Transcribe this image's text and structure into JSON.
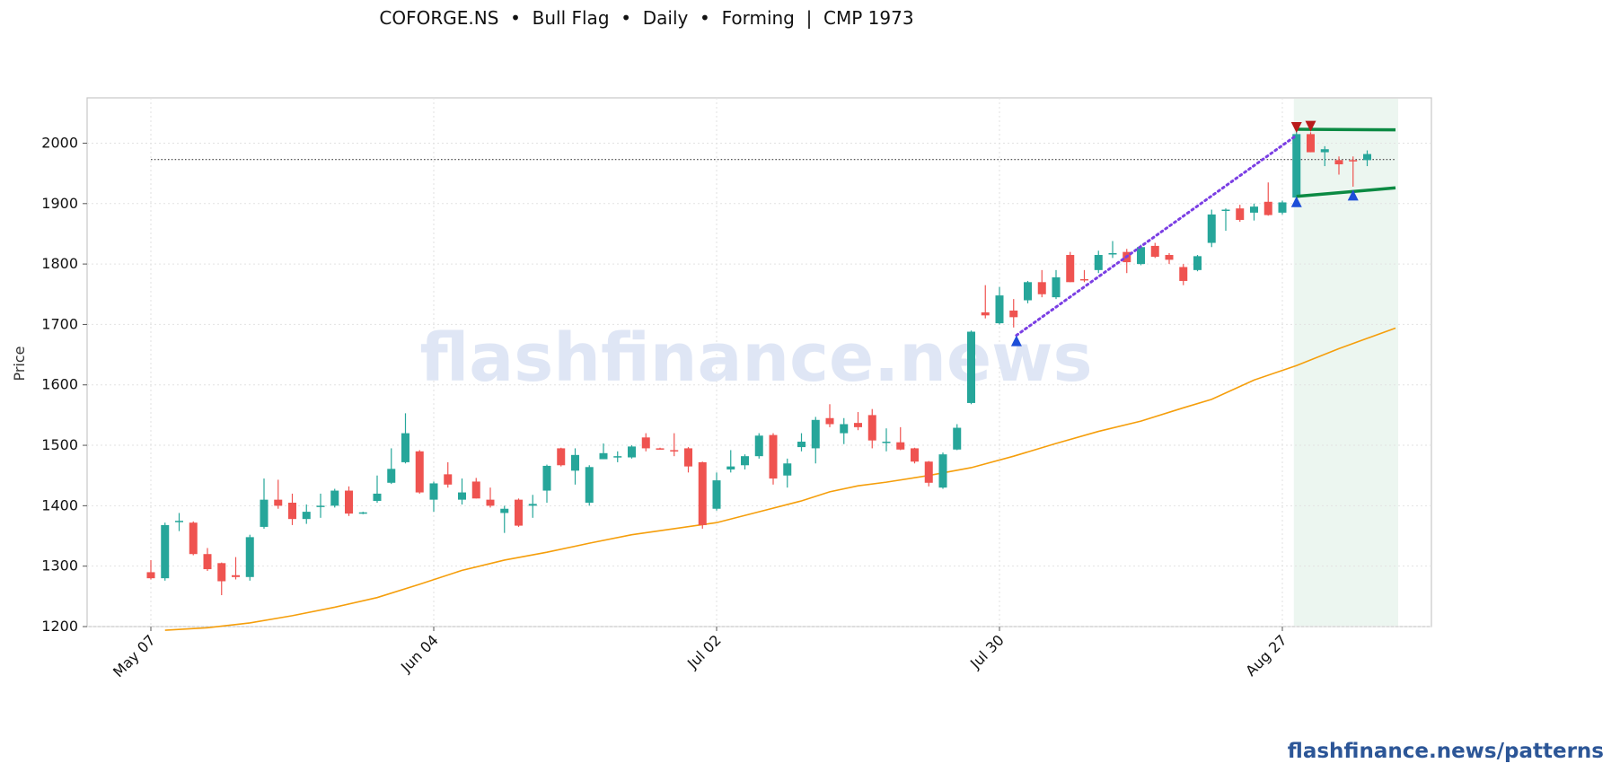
{
  "header": {
    "title": "COFORGE.NS  •  Bull Flag  •  Daily  •  Forming  |  CMP 1973"
  },
  "footer": {
    "link": "flashfinance.news/patterns"
  },
  "watermark": "flashfinance.news",
  "colors": {
    "up": "#26a69a",
    "down": "#ef5350",
    "ma": "#f59e0b",
    "flagpole": "#7b3fe4",
    "channel": "#0b8a43",
    "marker_up": "#1d4ed8",
    "marker_down": "#b91c1c",
    "zone": "#e7f4ec",
    "watermark": "#dfe6f5"
  },
  "chart_data": {
    "type": "candlestick",
    "ylabel": "Price",
    "ylim": [
      1200,
      2075
    ],
    "yticks": [
      1200,
      1300,
      1400,
      1500,
      1600,
      1700,
      1800,
      1900,
      2000
    ],
    "xtick_labels": [
      {
        "index": 0,
        "label": "May 07"
      },
      {
        "index": 20,
        "label": "Jun 04"
      },
      {
        "index": 40,
        "label": "Jul 02"
      },
      {
        "index": 60,
        "label": "Jul 30"
      },
      {
        "index": 80,
        "label": "Aug 27"
      }
    ],
    "grid": true,
    "cmp_line": 1973,
    "candles": [
      [
        1290,
        1310,
        1278,
        1280
      ],
      [
        1280,
        1372,
        1276,
        1368
      ],
      [
        1375,
        1388,
        1358,
        1375
      ],
      [
        1372,
        1374,
        1318,
        1320
      ],
      [
        1320,
        1330,
        1292,
        1295
      ],
      [
        1305,
        1306,
        1252,
        1275
      ],
      [
        1285,
        1315,
        1278,
        1282
      ],
      [
        1282,
        1352,
        1276,
        1348
      ],
      [
        1365,
        1445,
        1362,
        1410
      ],
      [
        1410,
        1443,
        1395,
        1400
      ],
      [
        1405,
        1420,
        1368,
        1378
      ],
      [
        1378,
        1402,
        1370,
        1390
      ],
      [
        1398,
        1420,
        1380,
        1400
      ],
      [
        1400,
        1428,
        1397,
        1425
      ],
      [
        1425,
        1432,
        1383,
        1387
      ],
      [
        1388,
        1390,
        1386,
        1389
      ],
      [
        1408,
        1450,
        1405,
        1420
      ],
      [
        1438,
        1495,
        1436,
        1461
      ],
      [
        1472,
        1553,
        1470,
        1520
      ],
      [
        1490,
        1492,
        1420,
        1422
      ],
      [
        1410,
        1440,
        1390,
        1437
      ],
      [
        1452,
        1472,
        1430,
        1435
      ],
      [
        1410,
        1445,
        1402,
        1422
      ],
      [
        1440,
        1446,
        1412,
        1412
      ],
      [
        1410,
        1430,
        1397,
        1400
      ],
      [
        1388,
        1400,
        1355,
        1395
      ],
      [
        1410,
        1412,
        1365,
        1367
      ],
      [
        1400,
        1418,
        1380,
        1403
      ],
      [
        1425,
        1468,
        1405,
        1466
      ],
      [
        1495,
        1496,
        1465,
        1467
      ],
      [
        1458,
        1495,
        1435,
        1484
      ],
      [
        1405,
        1467,
        1400,
        1464
      ],
      [
        1477,
        1503,
        1477,
        1487
      ],
      [
        1480,
        1490,
        1472,
        1482
      ],
      [
        1480,
        1500,
        1478,
        1498
      ],
      [
        1513,
        1520,
        1490,
        1495
      ],
      [
        1495,
        1496,
        1493,
        1494
      ],
      [
        1492,
        1520,
        1482,
        1490
      ],
      [
        1495,
        1497,
        1455,
        1465
      ],
      [
        1472,
        1473,
        1362,
        1368
      ],
      [
        1395,
        1455,
        1392,
        1442
      ],
      [
        1460,
        1492,
        1455,
        1465
      ],
      [
        1467,
        1485,
        1460,
        1482
      ],
      [
        1482,
        1520,
        1478,
        1516
      ],
      [
        1517,
        1520,
        1435,
        1445
      ],
      [
        1450,
        1478,
        1430,
        1470
      ],
      [
        1497,
        1520,
        1490,
        1506
      ],
      [
        1495,
        1547,
        1470,
        1542
      ],
      [
        1545,
        1568,
        1530,
        1535
      ],
      [
        1520,
        1545,
        1502,
        1535
      ],
      [
        1537,
        1555,
        1525,
        1530
      ],
      [
        1550,
        1560,
        1495,
        1508
      ],
      [
        1505,
        1528,
        1490,
        1506
      ],
      [
        1505,
        1530,
        1492,
        1493
      ],
      [
        1495,
        1496,
        1470,
        1473
      ],
      [
        1473,
        1474,
        1432,
        1438
      ],
      [
        1430,
        1488,
        1428,
        1485
      ],
      [
        1493,
        1535,
        1492,
        1529
      ],
      [
        1570,
        1690,
        1568,
        1688
      ],
      [
        1720,
        1765,
        1710,
        1715
      ],
      [
        1702,
        1762,
        1700,
        1748
      ],
      [
        1723,
        1742,
        1695,
        1712
      ],
      [
        1740,
        1772,
        1735,
        1770
      ],
      [
        1770,
        1790,
        1745,
        1750
      ],
      [
        1745,
        1790,
        1742,
        1778
      ],
      [
        1815,
        1820,
        1770,
        1770
      ],
      [
        1775,
        1790,
        1770,
        1774
      ],
      [
        1790,
        1822,
        1785,
        1815
      ],
      [
        1818,
        1838,
        1810,
        1818
      ],
      [
        1820,
        1825,
        1785,
        1803
      ],
      [
        1800,
        1832,
        1798,
        1828
      ],
      [
        1830,
        1835,
        1810,
        1812
      ],
      [
        1815,
        1818,
        1800,
        1807
      ],
      [
        1795,
        1800,
        1765,
        1772
      ],
      [
        1790,
        1815,
        1788,
        1813
      ],
      [
        1835,
        1890,
        1828,
        1882
      ],
      [
        1890,
        1892,
        1855,
        1890
      ],
      [
        1892,
        1898,
        1870,
        1873
      ],
      [
        1885,
        1900,
        1872,
        1895
      ],
      [
        1903,
        1935,
        1880,
        1881
      ],
      [
        1885,
        1905,
        1882,
        1902
      ],
      [
        1910,
        2020,
        1905,
        2015
      ],
      [
        2015,
        2018,
        1985,
        1985
      ],
      [
        1985,
        1995,
        1962,
        1990
      ],
      [
        1972,
        1978,
        1948,
        1965
      ],
      [
        1972,
        1978,
        1928,
        1970
      ],
      [
        1972,
        1988,
        1962,
        1982
      ]
    ],
    "moving_average": [
      [
        1,
        1194
      ],
      [
        4,
        1198
      ],
      [
        7,
        1206
      ],
      [
        10,
        1218
      ],
      [
        13,
        1232
      ],
      [
        16,
        1248
      ],
      [
        19,
        1270
      ],
      [
        22,
        1293
      ],
      [
        25,
        1310
      ],
      [
        28,
        1323
      ],
      [
        31,
        1338
      ],
      [
        34,
        1352
      ],
      [
        37,
        1362
      ],
      [
        40,
        1372
      ],
      [
        43,
        1390
      ],
      [
        46,
        1408
      ],
      [
        48,
        1423
      ],
      [
        50,
        1433
      ],
      [
        52,
        1439
      ],
      [
        55,
        1450
      ],
      [
        58,
        1463
      ],
      [
        61,
        1482
      ],
      [
        64,
        1503
      ],
      [
        67,
        1523
      ],
      [
        70,
        1540
      ],
      [
        73,
        1562
      ],
      [
        75,
        1576
      ],
      [
        78,
        1608
      ],
      [
        81,
        1632
      ],
      [
        84,
        1660
      ],
      [
        86,
        1677
      ],
      [
        88,
        1694
      ]
    ],
    "flagpole": [
      [
        61.2,
        1682
      ],
      [
        81,
        2013
      ]
    ],
    "channel_upper": [
      [
        81,
        2023
      ],
      [
        88,
        2022
      ]
    ],
    "channel_lower": [
      [
        81,
        1912
      ],
      [
        88,
        1926
      ]
    ],
    "flag_zone": [
      81,
      88
    ],
    "markers_up": [
      [
        61.2,
        1673
      ],
      [
        81,
        1903
      ],
      [
        85,
        1914
      ]
    ],
    "markers_down": [
      [
        81,
        2026
      ],
      [
        82,
        2028
      ]
    ]
  }
}
